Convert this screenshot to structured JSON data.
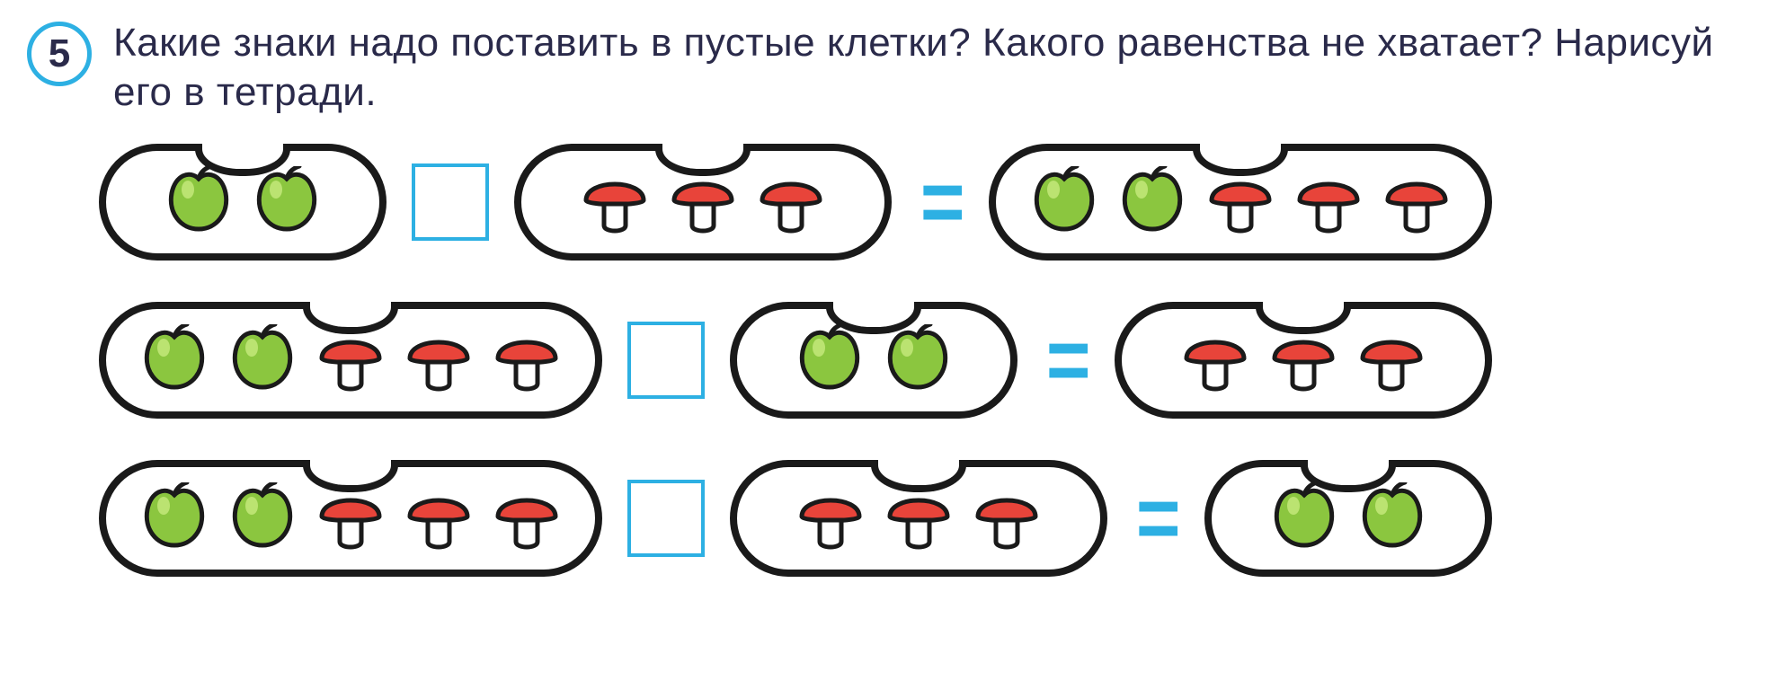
{
  "exercise_number": "5",
  "question_text": "Какие знаки надо поставить в пустые клетки? Какого равенства не хватает? Нарисуй его в тетради.",
  "colors": {
    "accent": "#2db0e3",
    "text": "#2a2a4a",
    "outline": "#1a1a1a",
    "apple_fill": "#8bc63f",
    "apple_stem": "#6a8f2a",
    "mushroom_cap": "#e8443a",
    "mushroom_stem_fill": "#ffffff",
    "mushroom_stem_stroke": "#1a1a1a",
    "background": "#ffffff"
  },
  "icons": {
    "apple": "apple",
    "mushroom": "mushroom"
  },
  "layout": {
    "capsule_border_width": 8,
    "capsule_radius": 80,
    "capsule_height": 130,
    "blank_box_size": 86,
    "blank_box_border": 4,
    "font_size_question": 44,
    "font_size_number": 44
  },
  "rows": [
    {
      "left": {
        "size": "small",
        "items": [
          "apple",
          "apple"
        ]
      },
      "op": {
        "type": "blank"
      },
      "middle": {
        "size": "medium",
        "items": [
          "mushroom",
          "mushroom",
          "mushroom"
        ]
      },
      "eq": "=",
      "right": {
        "size": "large",
        "items": [
          "apple",
          "apple",
          "mushroom",
          "mushroom",
          "mushroom"
        ]
      }
    },
    {
      "left": {
        "size": "large",
        "items": [
          "apple",
          "apple",
          "mushroom",
          "mushroom",
          "mushroom"
        ]
      },
      "op": {
        "type": "blank"
      },
      "middle": {
        "size": "small",
        "items": [
          "apple",
          "apple"
        ]
      },
      "eq": "=",
      "right": {
        "size": "medium",
        "items": [
          "mushroom",
          "mushroom",
          "mushroom"
        ]
      }
    },
    {
      "left": {
        "size": "large",
        "items": [
          "apple",
          "apple",
          "mushroom",
          "mushroom",
          "mushroom"
        ]
      },
      "op": {
        "type": "blank"
      },
      "middle": {
        "size": "medium",
        "items": [
          "mushroom",
          "mushroom",
          "mushroom"
        ]
      },
      "eq": "=",
      "right": {
        "size": "small",
        "items": [
          "apple",
          "apple"
        ]
      }
    }
  ]
}
